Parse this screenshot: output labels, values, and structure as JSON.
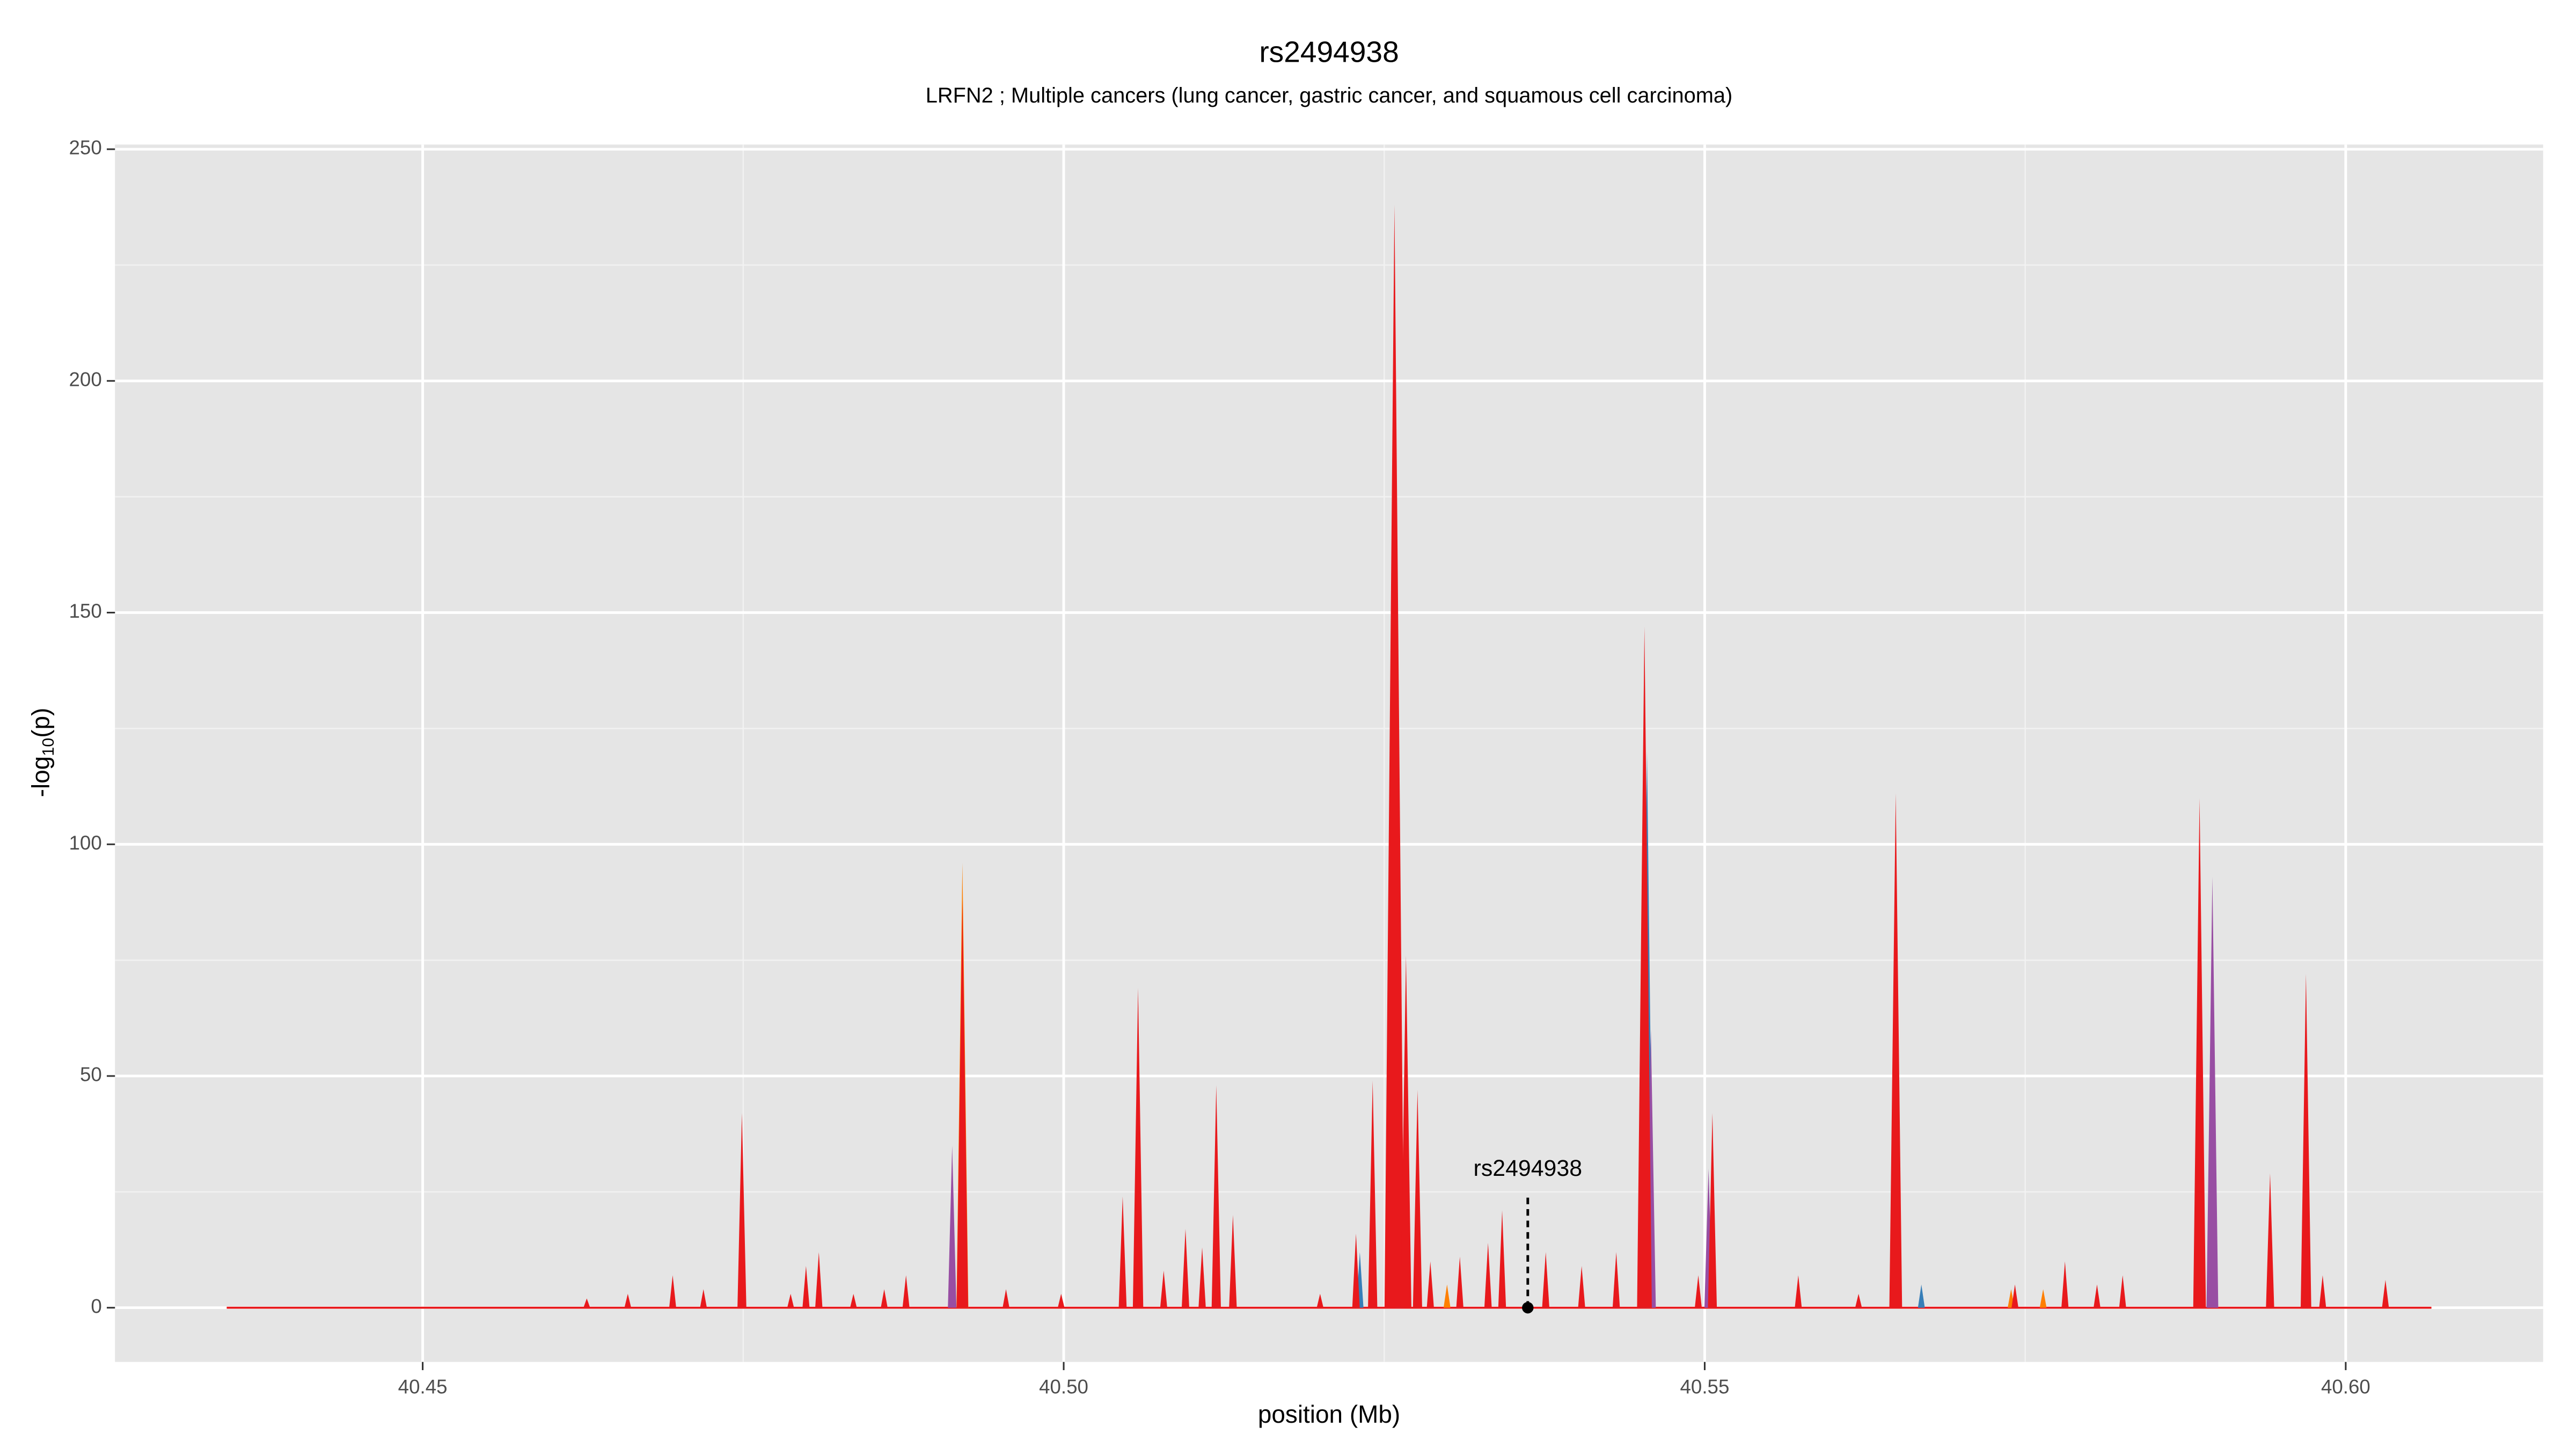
{
  "chart_data": {
    "type": "spike-area",
    "title": "rs2494938",
    "subtitle": "LRFN2 ; Multiple cancers (lung cancer, gastric cancer, and squamous cell carcinoma)",
    "x_label": "position (Mb)",
    "y_label": {
      "prefix": "-log",
      "sub": "10",
      "suffix": "(p)"
    },
    "xlim": [
      40.426,
      40.6154
    ],
    "ylim": [
      -11.7,
      251
    ],
    "xticks": [
      40.45,
      {
        "value": 40.5,
        "label": "40.50"
      },
      40.55,
      {
        "value": 40.6,
        "label": "40.60"
      }
    ],
    "yticks": [
      0,
      50,
      100,
      150,
      200,
      250
    ],
    "grid": true,
    "series": [
      {
        "color": "#ff7f00",
        "x": [
          40.4921,
          40.5299,
          40.5739,
          40.5764
        ],
        "values": [
          96,
          5,
          4,
          4
        ]
      },
      {
        "color": "#377eb8",
        "x": [
          40.5262,
          40.5455,
          40.5669,
          40.5231
        ],
        "values": [
          40,
          120,
          5,
          12
        ]
      },
      {
        "color": "#984ea3",
        "x": [
          40.4913,
          40.5503,
          40.5896,
          40.5458
        ],
        "values": [
          35,
          30,
          93,
          60
        ]
      },
      {
        "color": "#e8191c",
        "x": [
          40.4628,
          40.466,
          40.4695,
          40.4719,
          40.4749,
          40.4787,
          40.4799,
          40.4809,
          40.4836,
          40.486,
          40.4877,
          40.4921,
          40.4955,
          40.4998,
          40.5046,
          40.5058,
          40.5078,
          40.5095,
          40.5108,
          40.5119,
          40.5132,
          40.52,
          40.5228,
          40.5241,
          40.5258,
          40.5267,
          40.5276,
          40.5286,
          40.5309,
          40.5331,
          40.5342,
          40.5376,
          40.5404,
          40.5431,
          40.5453,
          40.5495,
          40.5506,
          40.5573,
          40.562,
          40.5649,
          40.5742,
          40.5781,
          40.5806,
          40.5826,
          40.5886,
          40.5941,
          40.5969,
          40.5982,
          40.6031
        ],
        "values": [
          2,
          3,
          7,
          4,
          42,
          3,
          9,
          12,
          3,
          4,
          7,
          88,
          4,
          3,
          24,
          69,
          8,
          17,
          13,
          48,
          20,
          3,
          16,
          49,
          238,
          76,
          47,
          10,
          11,
          14,
          21,
          12,
          9,
          12,
          147,
          7,
          42,
          7,
          3,
          111,
          5,
          10,
          5,
          7,
          110,
          29,
          72,
          7,
          6
        ]
      }
    ],
    "annotations": [
      {
        "text": "rs2494938",
        "x": 40.5362,
        "y": 0
      }
    ]
  }
}
